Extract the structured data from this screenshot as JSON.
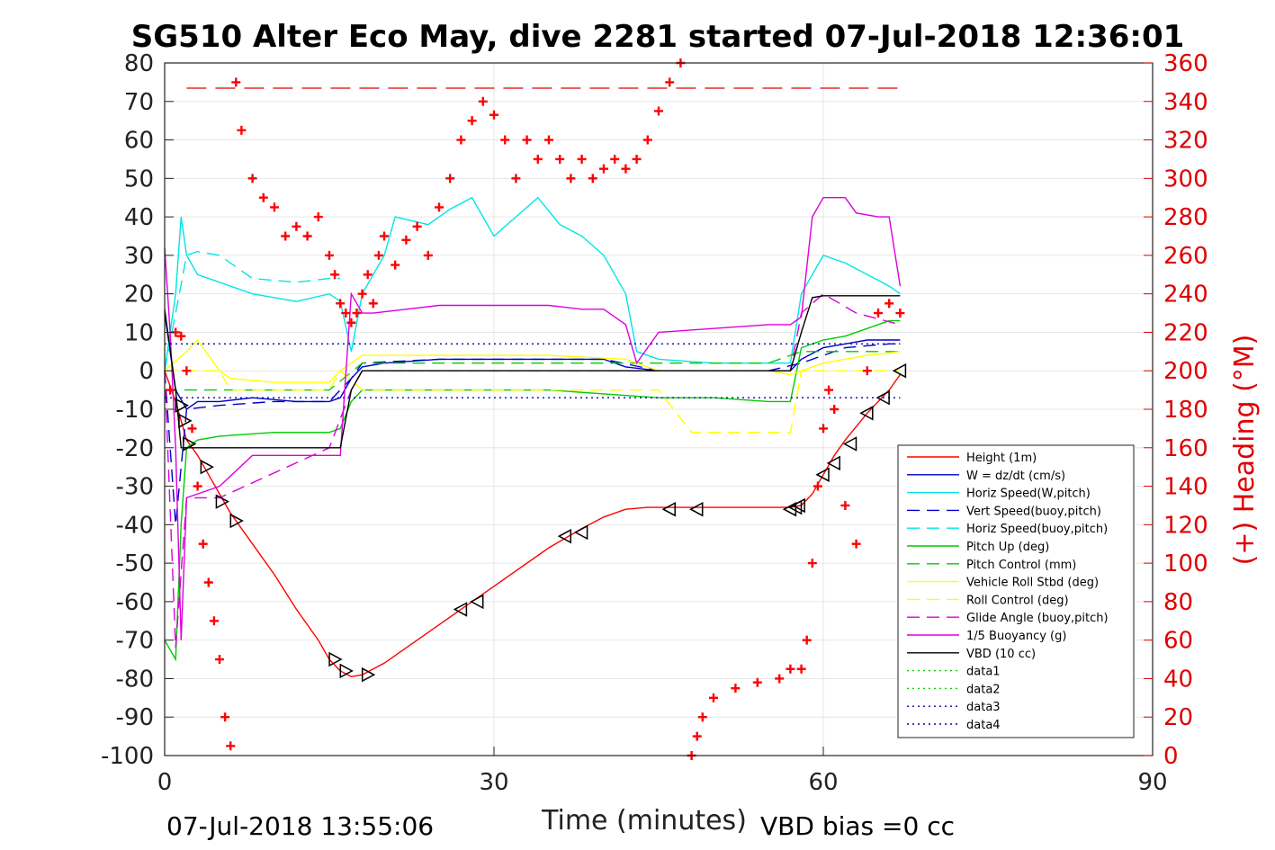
{
  "chart_data": {
    "type": "line",
    "title": "SG510 Alter Eco May, dive 2281 started 07-Jul-2018 12:36:01",
    "xlabel": "Time (minutes)",
    "ylabel": "",
    "y2label": "(+) Heading (°M)",
    "xlim": [
      0,
      90
    ],
    "ylim": [
      -100,
      80
    ],
    "y2lim": [
      0,
      360
    ],
    "xticks": [
      "0",
      "30",
      "60",
      "90"
    ],
    "yticks": [
      "80",
      "70",
      "60",
      "50",
      "40",
      "30",
      "20",
      "10",
      "0",
      "-10",
      "-20",
      "-30",
      "-40",
      "-50",
      "-60",
      "-70",
      "-80",
      "-90",
      "-100"
    ],
    "y2ticks": [
      "360",
      "340",
      "320",
      "300",
      "280",
      "260",
      "240",
      "220",
      "200",
      "180",
      "160",
      "140",
      "120",
      "100",
      "80",
      "60",
      "40",
      "20",
      "0"
    ],
    "grid": true,
    "legend_position": "lower-right",
    "footer_left": "07-Jul-2018 13:55:06",
    "footer_right": "VBD bias =0 cc",
    "series": [
      {
        "name": "Height (1m)",
        "color": "#ff0000",
        "style": "solid",
        "x": [
          0,
          1,
          1.5,
          2,
          3,
          4,
          5,
          6,
          8,
          10,
          12,
          14,
          15,
          16,
          17,
          18,
          20,
          25,
          30,
          35,
          38,
          40,
          42,
          44,
          47,
          50,
          54,
          57,
          58,
          59,
          60,
          61,
          62,
          64,
          66,
          67
        ],
        "values": [
          0,
          -8,
          -13,
          -18,
          -22,
          -27,
          -32,
          -37,
          -45,
          -53,
          -62,
          -70,
          -75,
          -78,
          -79.5,
          -79,
          -76,
          -66,
          -56,
          -46,
          -41,
          -38,
          -36,
          -35.5,
          -35.5,
          -35.5,
          -35.5,
          -35.5,
          -35,
          -32,
          -27,
          -22,
          -18,
          -11,
          -5,
          -1
        ]
      },
      {
        "name": "W = dz/dt (cm/s)",
        "color": "#0000cc",
        "style": "solid",
        "x": [
          0,
          1,
          2,
          3,
          5,
          8,
          12,
          15,
          16,
          17,
          18,
          20,
          25,
          30,
          35,
          40,
          42,
          45,
          50,
          55,
          57,
          58,
          60,
          62,
          64,
          66,
          67
        ],
        "values": [
          15,
          -5,
          -10,
          -8,
          -8,
          -7,
          -8,
          -8,
          -7,
          -2,
          1,
          2,
          3,
          3,
          3,
          3,
          1,
          0,
          0,
          0,
          0,
          3,
          6,
          7,
          8,
          8,
          8
        ]
      },
      {
        "name": "Horiz Speed(W,pitch)",
        "color": "#00e5e5",
        "style": "solid",
        "x": [
          0,
          1,
          1.5,
          2,
          3,
          5,
          8,
          12,
          15,
          16,
          17,
          18,
          20,
          21,
          24,
          26,
          28,
          30,
          32,
          34,
          36,
          38,
          40,
          41,
          42,
          43,
          45,
          50,
          55,
          57,
          58,
          60,
          62,
          64,
          66,
          67
        ],
        "values": [
          0,
          20,
          40,
          30,
          25,
          23,
          20,
          18,
          20,
          18,
          5,
          20,
          30,
          40,
          38,
          42,
          45,
          35,
          40,
          45,
          38,
          35,
          30,
          25,
          20,
          5,
          3,
          2,
          2,
          2,
          20,
          30,
          28,
          25,
          22,
          20
        ]
      },
      {
        "name": "Vert Speed(buoy,pitch)",
        "color": "#0000cc",
        "style": "dashed",
        "x": [
          0,
          1,
          2,
          5,
          10,
          15,
          17,
          18,
          25,
          30,
          40,
          45,
          55,
          58,
          62,
          66,
          67
        ],
        "values": [
          0,
          -40,
          -10,
          -9,
          -8,
          -8,
          -2,
          2,
          3,
          3,
          3,
          0,
          0,
          2,
          6,
          7,
          7
        ]
      },
      {
        "name": "Horiz Speed(buoy,pitch)",
        "color": "#00e5e5",
        "style": "dashed",
        "x": [
          0,
          2,
          3,
          5,
          8,
          12,
          15,
          16
        ],
        "values": [
          0,
          30,
          31,
          30,
          24,
          23,
          24,
          24
        ]
      },
      {
        "name": "Pitch Up (deg)",
        "color": "#00cc00",
        "style": "solid",
        "x": [
          0,
          1,
          1.5,
          2,
          3,
          5,
          10,
          15,
          16,
          17,
          18,
          25,
          30,
          35,
          40,
          45,
          50,
          55,
          57,
          58,
          60,
          62,
          64,
          66,
          67
        ],
        "values": [
          -70,
          -75,
          -40,
          -20,
          -18,
          -17,
          -16,
          -16,
          -15,
          -8,
          -5,
          -5,
          -5,
          -5,
          -6,
          -7,
          -7,
          -8,
          -8,
          6,
          8,
          9,
          11,
          13,
          13
        ]
      },
      {
        "name": "Pitch Control (mm)",
        "color": "#00cc00",
        "style": "dashed",
        "x": [
          0,
          5,
          15,
          18,
          30,
          45,
          55,
          58,
          63,
          67
        ],
        "values": [
          -5,
          -5,
          -5,
          2,
          2,
          2,
          2,
          5,
          5,
          5
        ]
      },
      {
        "name": "Vehicle Roll Stbd (deg)",
        "color": "#ffff00",
        "style": "solid",
        "x": [
          0,
          2,
          3,
          4,
          5,
          6,
          10,
          15,
          16,
          18,
          25,
          35,
          42,
          45,
          50,
          55,
          57,
          60,
          64,
          67
        ],
        "values": [
          0,
          5,
          8,
          4,
          0,
          -2,
          -3,
          -3,
          0,
          4,
          4,
          4,
          3,
          0,
          0,
          0,
          -1,
          2,
          4,
          5
        ]
      },
      {
        "name": "Roll Control (deg)",
        "color": "#ffff00",
        "style": "dashed",
        "x": [
          0,
          4,
          5,
          6,
          15,
          16,
          18,
          25,
          35,
          45,
          48,
          55,
          57,
          58,
          67
        ],
        "values": [
          0,
          0,
          0,
          -5,
          -5,
          0,
          -5,
          -5,
          -5,
          -5,
          -16,
          -16,
          -16,
          0,
          0
        ]
      },
      {
        "name": "Glide Angle (buoy,pitch)",
        "color": "#dd00dd",
        "style": "dashed",
        "x": [
          0,
          1,
          2,
          5,
          15,
          17,
          18,
          30,
          45,
          57,
          58,
          60,
          63,
          67
        ],
        "values": [
          0,
          -72,
          -33,
          -33,
          -20,
          -5,
          0,
          0,
          0,
          0,
          15,
          20,
          15,
          12
        ]
      },
      {
        "name": "1/5 Buoyancy (g)",
        "color": "#dd00dd",
        "style": "solid",
        "x": [
          0,
          0.5,
          1,
          1.5,
          2,
          3,
          5,
          8,
          12,
          15,
          16,
          17,
          18,
          19,
          22,
          25,
          30,
          35,
          38,
          40,
          42,
          43,
          45,
          50,
          55,
          57,
          58,
          59,
          60,
          62,
          63,
          65,
          66,
          67
        ],
        "values": [
          32,
          10,
          -20,
          -70,
          -33,
          -32,
          -30,
          -22,
          -22,
          -22,
          -22,
          20,
          15,
          15,
          16,
          17,
          17,
          17,
          16,
          16,
          12,
          2,
          10,
          11,
          12,
          12,
          14,
          40,
          45,
          45,
          41,
          40,
          40,
          22
        ]
      },
      {
        "name": "VBD (10 cc)",
        "color": "#000000",
        "style": "solid",
        "x": [
          0,
          1,
          1.5,
          2,
          3,
          10,
          15,
          16,
          17,
          18,
          30,
          45,
          57,
          58,
          59,
          60,
          62,
          67
        ],
        "values": [
          16,
          -5,
          -20,
          -20,
          -20,
          -20,
          -20,
          -20,
          -5,
          0,
          0,
          0,
          0,
          10,
          19,
          19.5,
          19.5,
          19.5
        ]
      },
      {
        "name": "data1",
        "color": "#00cc00",
        "style": "dotted",
        "x": [],
        "values": []
      },
      {
        "name": "data2",
        "color": "#00cc00",
        "style": "dotted",
        "x": [],
        "values": []
      },
      {
        "name": "data3",
        "color": "#0000aa",
        "style": "dotted",
        "x": [
          0,
          67
        ],
        "values": [
          7,
          7
        ]
      },
      {
        "name": "data4",
        "color": "#0000aa",
        "style": "dotted",
        "x": [
          0,
          67
        ],
        "values": [
          -7,
          -7
        ]
      }
    ],
    "heading_series": {
      "name": "(+) Heading (°M)",
      "color": "#ff0000",
      "marker": "+",
      "axis": "right",
      "x": [
        0.5,
        1,
        1.5,
        2,
        2.5,
        3,
        3.5,
        4,
        4.5,
        5,
        5.5,
        6,
        6.5,
        7,
        8,
        9,
        10,
        11,
        12,
        13,
        14,
        15,
        15.5,
        16,
        16.5,
        17,
        17.5,
        18,
        18.5,
        19,
        19.5,
        20,
        21,
        22,
        23,
        24,
        25,
        26,
        27,
        28,
        29,
        30,
        31,
        32,
        33,
        34,
        35,
        36,
        37,
        38,
        39,
        40,
        41,
        42,
        43,
        44,
        45,
        46,
        47,
        48,
        48.5,
        49,
        50,
        52,
        54,
        56,
        57,
        58,
        58.5,
        59,
        59.5,
        60,
        60.5,
        61,
        62,
        63,
        64,
        65,
        66,
        67
      ],
      "values": [
        190,
        220,
        218,
        200,
        170,
        140,
        110,
        90,
        70,
        50,
        20,
        5,
        350,
        325,
        300,
        290,
        285,
        270,
        275,
        270,
        280,
        260,
        250,
        235,
        230,
        225,
        230,
        240,
        250,
        235,
        260,
        270,
        255,
        268,
        275,
        260,
        285,
        300,
        320,
        330,
        340,
        333,
        320,
        300,
        320,
        310,
        320,
        310,
        300,
        310,
        300,
        305,
        310,
        305,
        310,
        320,
        335,
        350,
        360,
        0,
        10,
        20,
        30,
        35,
        38,
        40,
        45,
        45,
        60,
        100,
        140,
        170,
        190,
        180,
        130,
        110,
        200,
        230,
        235,
        230
      ]
    },
    "markers": {
      "name": "triangles",
      "color": "#000000",
      "x": [
        1.5,
        1.8,
        2.2,
        3.8,
        5.2,
        6.5,
        15.5,
        16.5,
        18.5,
        27,
        28.5,
        36.5,
        38,
        46,
        48.5,
        57,
        57.5,
        57.8,
        60,
        61,
        62.5,
        64,
        65.5,
        67
      ],
      "values": [
        -9,
        -13,
        -19,
        -25,
        -34,
        -39,
        -75,
        -78,
        -79,
        -62,
        -60,
        -43,
        -42,
        -36,
        -36,
        -36,
        -35.5,
        -35,
        -27,
        -24,
        -19,
        -11,
        -7,
        0
      ]
    }
  }
}
